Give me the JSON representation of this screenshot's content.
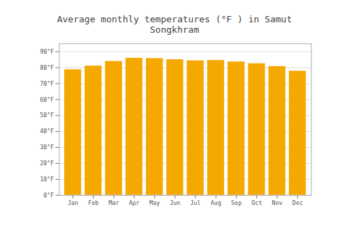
{
  "chart_data": {
    "type": "bar",
    "title": "Average monthly temperatures (°F ) in Samut Songkhram",
    "categories": [
      "Jan",
      "Feb",
      "Mar",
      "Apr",
      "May",
      "Jun",
      "Jul",
      "Aug",
      "Sep",
      "Oct",
      "Nov",
      "Dec"
    ],
    "values": [
      78.8,
      81.1,
      84.0,
      86.0,
      85.8,
      85.1,
      84.4,
      84.6,
      83.7,
      82.6,
      80.8,
      77.9
    ],
    "color": "#F5A800",
    "ylim": [
      0,
      95
    ],
    "yticks": [
      {
        "value": 0,
        "label": "0°F"
      },
      {
        "value": 10,
        "label": "10°F"
      },
      {
        "value": 20,
        "label": "20°F"
      },
      {
        "value": 30,
        "label": "30°F"
      },
      {
        "value": 40,
        "label": "40°F"
      },
      {
        "value": 50,
        "label": "50°F"
      },
      {
        "value": 60,
        "label": "60°F"
      },
      {
        "value": 70,
        "label": "70°F"
      },
      {
        "value": 80,
        "label": "80°F"
      },
      {
        "value": 90,
        "label": "90°F"
      }
    ],
    "grid": true
  }
}
